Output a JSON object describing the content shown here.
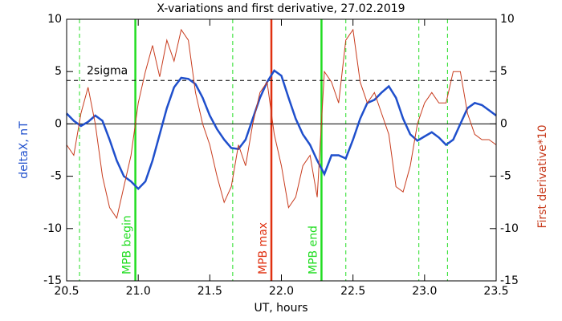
{
  "chart_data": {
    "type": "line",
    "title": "X-variations and first derivative, 27.02.2019",
    "xlabel": "UT, hours",
    "ylabel": "deltaX, nT",
    "y2label": "First derivative*10",
    "xlim": [
      20.5,
      23.5
    ],
    "xticks": [
      20.5,
      {
        "value": 21,
        "label": "21.0"
      },
      21.5,
      {
        "value": 22,
        "label": "22.0"
      },
      22.5,
      {
        "value": 23,
        "label": "23.0"
      },
      23.5
    ],
    "ylim": [
      -15,
      10
    ],
    "yticks": [
      -15,
      -10,
      -5,
      0,
      5,
      10
    ],
    "y2lim": [
      -15,
      10
    ],
    "y2ticks": [
      -15,
      -10,
      -5,
      0,
      5,
      10
    ],
    "x": [
      20.5,
      20.55,
      20.6,
      20.65,
      20.7,
      20.75,
      20.8,
      20.85,
      20.9,
      20.95,
      21,
      21.05,
      21.1,
      21.15,
      21.2,
      21.25,
      21.3,
      21.35,
      21.4,
      21.45,
      21.5,
      21.55,
      21.6,
      21.65,
      21.7,
      21.75,
      21.8,
      21.85,
      21.9,
      21.95,
      22,
      22.05,
      22.1,
      22.15,
      22.2,
      22.25,
      22.3,
      22.35,
      22.4,
      22.45,
      22.5,
      22.55,
      22.6,
      22.65,
      22.7,
      22.75,
      22.8,
      22.85,
      22.9,
      22.95,
      23,
      23.05,
      23.1,
      23.15,
      23.2,
      23.25,
      23.3,
      23.35,
      23.4,
      23.45,
      23.5
    ],
    "series": [
      {
        "name": "deltaX, nT",
        "color": "#1f4fcc",
        "values": [
          1.0,
          0.3,
          -0.2,
          0.2,
          0.8,
          0.3,
          -1.5,
          -3.5,
          -5.0,
          -5.5,
          -6.2,
          -5.5,
          -3.5,
          -1.0,
          1.5,
          3.5,
          4.4,
          4.3,
          3.8,
          2.5,
          0.8,
          -0.5,
          -1.5,
          -2.3,
          -2.4,
          -1.5,
          0.5,
          2.5,
          4.0,
          5.1,
          4.6,
          2.5,
          0.5,
          -1.0,
          -2.0,
          -3.5,
          -4.8,
          -3.0,
          -3.0,
          -3.3,
          -1.5,
          0.5,
          2.0,
          2.3,
          3.0,
          3.6,
          2.5,
          0.5,
          -1.0,
          -1.6,
          -1.2,
          -0.8,
          -1.3,
          -2.0,
          -1.5,
          0,
          1.5,
          2.0,
          1.8,
          1.3,
          0.8
        ]
      },
      {
        "name": "First derivative*10",
        "color": "#c83c1e",
        "axis": "y2",
        "values": [
          -2,
          -3,
          1,
          3.5,
          0,
          -5,
          -8,
          -9,
          -6,
          -3,
          2,
          5,
          7.5,
          4.5,
          8,
          6,
          9,
          8,
          3,
          0,
          -2,
          -5,
          -7.5,
          -6,
          -2,
          -4,
          0,
          3,
          4,
          -1,
          -4,
          -8,
          -7,
          -4,
          -3,
          -7,
          5,
          4,
          2,
          8,
          9,
          4,
          2,
          3,
          1,
          -1,
          -6,
          -6.5,
          -4,
          0,
          2,
          3,
          2,
          2,
          5,
          5,
          1,
          -1,
          -1.5,
          -1.5,
          -2
        ]
      }
    ],
    "zero_line": 0,
    "hline": {
      "value": 4.15,
      "label": "2sigma"
    },
    "vlines": [
      {
        "x": 20.59,
        "color": "#22dd22",
        "dashed": true
      },
      {
        "x": 20.98,
        "color": "#22dd22",
        "dashed": false,
        "label": "MPB begin"
      },
      {
        "x": 21.66,
        "color": "#22dd22",
        "dashed": true
      },
      {
        "x": 21.93,
        "color": "#e03010",
        "dashed": false,
        "label": "MPB max"
      },
      {
        "x": 22.28,
        "color": "#22dd22",
        "dashed": false,
        "label": "MPB end"
      },
      {
        "x": 22.45,
        "color": "#22dd22",
        "dashed": true
      },
      {
        "x": 22.96,
        "color": "#22dd22",
        "dashed": true
      },
      {
        "x": 23.16,
        "color": "#22dd22",
        "dashed": true
      }
    ]
  }
}
